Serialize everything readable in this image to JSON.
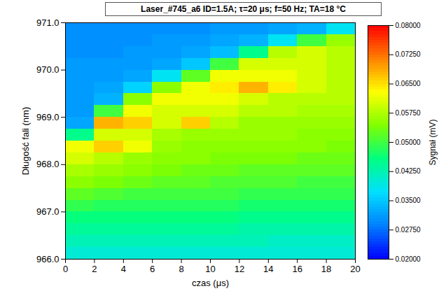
{
  "chart_data": {
    "type": "heatmap",
    "title": "Laser_#745_a6   ID=1.5A; τ=20 μs; f=50 Hz; TA=18 °C",
    "x_label": "czas (μs)",
    "y_label": "Długość fali (nm)",
    "x_bins": [
      0,
      2,
      4,
      6,
      8,
      10,
      12,
      14,
      16,
      18,
      20
    ],
    "y_bins": [
      966,
      966.25,
      966.5,
      966.75,
      967,
      967.25,
      967.5,
      967.75,
      968,
      968.25,
      968.5,
      968.75,
      969,
      969.25,
      969.5,
      969.75,
      970,
      970.25,
      970.5,
      970.75,
      971
    ],
    "values": [
      [
        0.04,
        0.04,
        0.04,
        0.04,
        0.04,
        0.04,
        0.04,
        0.04,
        0.04,
        0.04
      ],
      [
        0.042,
        0.042,
        0.042,
        0.042,
        0.042,
        0.042,
        0.042,
        0.041,
        0.041,
        0.041
      ],
      [
        0.044,
        0.044,
        0.044,
        0.044,
        0.044,
        0.044,
        0.043,
        0.043,
        0.043,
        0.043
      ],
      [
        0.046,
        0.046,
        0.046,
        0.046,
        0.046,
        0.046,
        0.045,
        0.045,
        0.045,
        0.045
      ],
      [
        0.049,
        0.048,
        0.048,
        0.048,
        0.048,
        0.048,
        0.047,
        0.047,
        0.047,
        0.047
      ],
      [
        0.052,
        0.051,
        0.05,
        0.05,
        0.05,
        0.05,
        0.049,
        0.049,
        0.049,
        0.049
      ],
      [
        0.055,
        0.054,
        0.053,
        0.052,
        0.052,
        0.051,
        0.051,
        0.051,
        0.05,
        0.05
      ],
      [
        0.057,
        0.056,
        0.055,
        0.054,
        0.053,
        0.053,
        0.052,
        0.052,
        0.052,
        0.052
      ],
      [
        0.06,
        0.058,
        0.056,
        0.055,
        0.055,
        0.054,
        0.054,
        0.054,
        0.053,
        0.053
      ],
      [
        0.062,
        0.066,
        0.062,
        0.056,
        0.055,
        0.055,
        0.055,
        0.055,
        0.055,
        0.054
      ],
      [
        0.045,
        0.06,
        0.06,
        0.057,
        0.056,
        0.056,
        0.056,
        0.056,
        0.055,
        0.055
      ],
      [
        0.032,
        0.068,
        0.066,
        0.06,
        0.066,
        0.058,
        0.056,
        0.056,
        0.056,
        0.056
      ],
      [
        0.031,
        0.05,
        0.062,
        0.06,
        0.06,
        0.06,
        0.058,
        0.058,
        0.057,
        0.057
      ],
      [
        0.031,
        0.033,
        0.055,
        0.062,
        0.062,
        0.062,
        0.06,
        0.058,
        0.058,
        0.058
      ],
      [
        0.031,
        0.032,
        0.036,
        0.055,
        0.062,
        0.064,
        0.068,
        0.064,
        0.06,
        0.058
      ],
      [
        0.031,
        0.031,
        0.032,
        0.038,
        0.052,
        0.062,
        0.062,
        0.062,
        0.06,
        0.058
      ],
      [
        0.031,
        0.031,
        0.031,
        0.032,
        0.035,
        0.05,
        0.06,
        0.06,
        0.06,
        0.058
      ],
      [
        0.03,
        0.03,
        0.031,
        0.031,
        0.032,
        0.034,
        0.045,
        0.058,
        0.06,
        0.058
      ],
      [
        0.03,
        0.03,
        0.03,
        0.031,
        0.031,
        0.032,
        0.033,
        0.038,
        0.05,
        0.056
      ],
      [
        0.03,
        0.03,
        0.03,
        0.03,
        0.03,
        0.031,
        0.031,
        0.032,
        0.033,
        0.038
      ]
    ],
    "xlim": [
      0,
      20
    ],
    "xticks": [
      0,
      2,
      4,
      6,
      8,
      10,
      12,
      14,
      16,
      18,
      20
    ],
    "ylim": [
      966,
      971
    ],
    "yticks": [
      966,
      967,
      968,
      969,
      970,
      971
    ],
    "colorbar": {
      "label": "Sygnał (mV)",
      "range": [
        0.02,
        0.08
      ],
      "ticks": [
        {
          "value": 0.02,
          "label": "0.02000"
        },
        {
          "value": 0.0275,
          "label": "0.02750"
        },
        {
          "value": 0.035,
          "label": "0.03500"
        },
        {
          "value": 0.0425,
          "label": "0.04250"
        },
        {
          "value": 0.05,
          "label": "0.05000"
        },
        {
          "value": 0.0575,
          "label": "0.05750"
        },
        {
          "value": 0.065,
          "label": "0.06500"
        },
        {
          "value": 0.0725,
          "label": "0.07250"
        },
        {
          "value": 0.08,
          "label": "0.08000"
        }
      ]
    },
    "grid": false
  }
}
